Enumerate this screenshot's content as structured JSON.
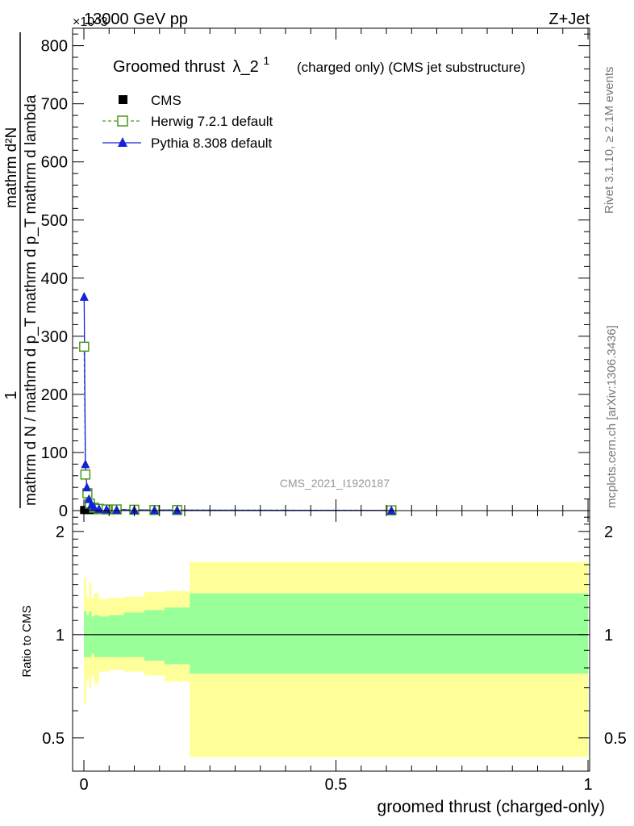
{
  "header": {
    "energy_label": "13000 GeV pp",
    "process_label": "Z+Jet",
    "exponent_label": "×10^3"
  },
  "side": {
    "rivet_label": "Rivet 3.1.10, ≥ 2.1M events",
    "mcplots_label": "mcplots.cern.ch [arXiv:1306.3436]"
  },
  "chart_data": [
    {
      "type": "line",
      "title": "Groomed thrust λ_2^1",
      "title_main": "Groomed thrust",
      "title_symbol": "λ_2",
      "title_sup": "1",
      "subtitle": "(charged only) (CMS jet substructure)",
      "analysis_id": "CMS_2021_I1920187",
      "ylabel_numerator": "1",
      "ylabel_denominator": "mathrm d N / mathrm d p_T mathrm d p_T mathrm d lambda",
      "ylabel_top": "mathrm d²N",
      "xlim": [
        0,
        1
      ],
      "ylim": [
        0,
        830
      ],
      "y_scale_note": "×10^3",
      "yticks": [
        0,
        100,
        200,
        300,
        400,
        500,
        600,
        700,
        800
      ],
      "legend_position": "top-left",
      "series": [
        {
          "name": "CMS",
          "marker": "filled-square",
          "color": "#000000",
          "x": [
            0.0005,
            0.005,
            0.012,
            0.02,
            0.03,
            0.045,
            0.065,
            0.1,
            0.14,
            0.185,
            0.61
          ],
          "y": [
            1,
            1,
            1,
            1,
            1,
            1,
            1,
            1,
            1,
            1,
            1
          ]
        },
        {
          "name": "Herwig 7.2.1 default",
          "marker": "open-square",
          "color": "#4a9a1c",
          "x": [
            0.0005,
            0.003,
            0.007,
            0.012,
            0.02,
            0.03,
            0.045,
            0.065,
            0.1,
            0.14,
            0.185,
            0.61
          ],
          "y": [
            282,
            62,
            30,
            12,
            5,
            3,
            2,
            2,
            1.5,
            1,
            1,
            0.5
          ]
        },
        {
          "name": "Pythia 8.308 default",
          "marker": "filled-triangle",
          "color": "#1522d6",
          "x": [
            0.0005,
            0.003,
            0.006,
            0.01,
            0.015,
            0.02,
            0.03,
            0.045,
            0.065,
            0.1,
            0.14,
            0.185,
            0.61
          ],
          "y": [
            368,
            80,
            40,
            20,
            10,
            6,
            3,
            2,
            1.5,
            1,
            1,
            0.8,
            0.3
          ]
        }
      ]
    },
    {
      "type": "area",
      "ylabel": "Ratio to CMS",
      "xlabel": "groomed thrust (charged-only)",
      "xlim": [
        0,
        1
      ],
      "ylim": [
        0.4,
        2.3
      ],
      "yscale": "log",
      "yticks": [
        0.5,
        1,
        2
      ],
      "xticks": [
        0,
        0.5,
        1
      ],
      "ref_line": 1,
      "bands": {
        "bin_edges": [
          0,
          0.005,
          0.01,
          0.015,
          0.02,
          0.03,
          0.05,
          0.08,
          0.12,
          0.16,
          0.21,
          1.0
        ],
        "outer": {
          "color": "#ffff99",
          "low": [
            0.63,
            0.74,
            0.7,
            0.76,
            0.72,
            0.78,
            0.79,
            0.78,
            0.76,
            0.73,
            0.44
          ],
          "high": [
            1.47,
            1.29,
            1.42,
            1.28,
            1.32,
            1.27,
            1.28,
            1.29,
            1.33,
            1.34,
            1.63
          ]
        },
        "inner": {
          "color": "#99ff99",
          "low": [
            0.86,
            0.86,
            0.86,
            0.88,
            0.86,
            0.86,
            0.86,
            0.86,
            0.84,
            0.82,
            0.77
          ],
          "high": [
            1.17,
            1.14,
            1.17,
            1.13,
            1.14,
            1.13,
            1.14,
            1.16,
            1.18,
            1.2,
            1.32
          ]
        }
      }
    }
  ]
}
